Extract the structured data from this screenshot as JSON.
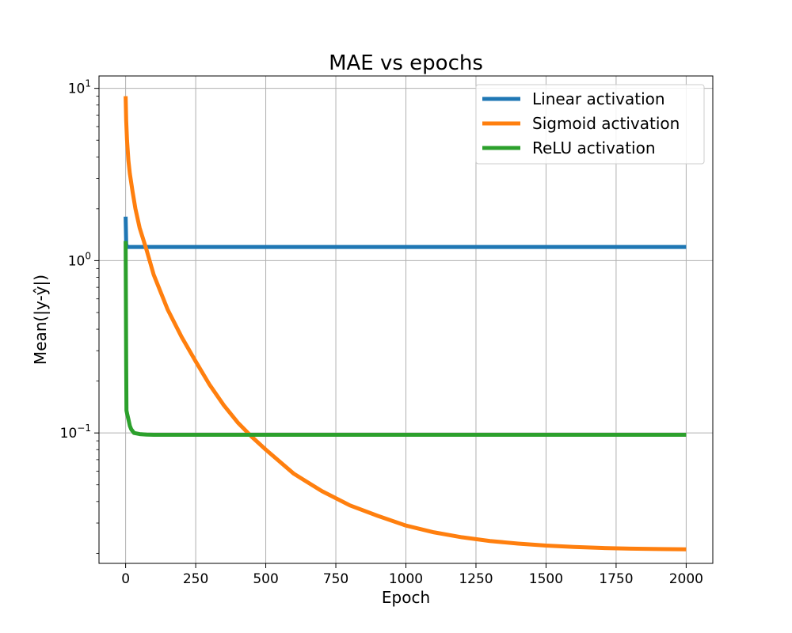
{
  "chart_data": {
    "type": "line",
    "title": "MAE vs epochs",
    "xlabel": "Epoch",
    "ylabel": "Mean(|y-ŷ|)",
    "xlim": [
      -95,
      2095
    ],
    "ylim": [
      0.0175,
      11.8
    ],
    "yscale": "log",
    "grid": true,
    "legend_position": "top-right",
    "x_ticks": [
      0,
      250,
      500,
      750,
      1000,
      1250,
      1500,
      1750,
      2000
    ],
    "x_tick_labels": [
      "0",
      "250",
      "500",
      "750",
      "1000",
      "1250",
      "1500",
      "1750",
      "2000"
    ],
    "y_ticks": [
      0.1,
      1,
      10
    ],
    "y_tick_labels": [
      {
        "base": "10",
        "exp": "−1"
      },
      {
        "base": "10",
        "exp": "0"
      },
      {
        "base": "10",
        "exp": "1"
      }
    ],
    "series": [
      {
        "name": "Linear activation",
        "color": "#1f77b4",
        "points": [
          [
            0,
            1.8
          ],
          [
            2,
            1.25
          ],
          [
            5,
            1.2
          ],
          [
            10,
            1.2
          ],
          [
            50,
            1.2
          ],
          [
            500,
            1.2
          ],
          [
            1000,
            1.2
          ],
          [
            1500,
            1.2
          ],
          [
            2000,
            1.2
          ]
        ]
      },
      {
        "name": "Sigmoid activation",
        "color": "#ff7f0e",
        "points": [
          [
            0,
            9.0
          ],
          [
            2,
            6.5
          ],
          [
            5,
            5.0
          ],
          [
            10,
            3.8
          ],
          [
            15,
            3.2
          ],
          [
            25,
            2.5
          ],
          [
            35,
            2.0
          ],
          [
            50,
            1.55
          ],
          [
            75,
            1.15
          ],
          [
            100,
            0.83
          ],
          [
            150,
            0.52
          ],
          [
            200,
            0.36
          ],
          [
            250,
            0.26
          ],
          [
            300,
            0.19
          ],
          [
            350,
            0.145
          ],
          [
            400,
            0.115
          ],
          [
            450,
            0.095
          ],
          [
            500,
            0.08
          ],
          [
            600,
            0.058
          ],
          [
            700,
            0.046
          ],
          [
            800,
            0.038
          ],
          [
            900,
            0.033
          ],
          [
            1000,
            0.029
          ],
          [
            1100,
            0.0265
          ],
          [
            1200,
            0.0248
          ],
          [
            1300,
            0.0236
          ],
          [
            1400,
            0.0228
          ],
          [
            1500,
            0.0222
          ],
          [
            1600,
            0.0218
          ],
          [
            1700,
            0.0215
          ],
          [
            1800,
            0.0213
          ],
          [
            1900,
            0.0212
          ],
          [
            2000,
            0.0211
          ]
        ]
      },
      {
        "name": "ReLU activation",
        "color": "#2ca02c",
        "points": [
          [
            0,
            1.3
          ],
          [
            1,
            0.6
          ],
          [
            2,
            0.25
          ],
          [
            3,
            0.135
          ],
          [
            5,
            0.13
          ],
          [
            10,
            0.12
          ],
          [
            15,
            0.11
          ],
          [
            20,
            0.105
          ],
          [
            30,
            0.1
          ],
          [
            50,
            0.0985
          ],
          [
            75,
            0.0978
          ],
          [
            100,
            0.0975
          ],
          [
            200,
            0.0975
          ],
          [
            500,
            0.0975
          ],
          [
            1000,
            0.0975
          ],
          [
            1500,
            0.0975
          ],
          [
            2000,
            0.0975
          ]
        ]
      }
    ]
  }
}
